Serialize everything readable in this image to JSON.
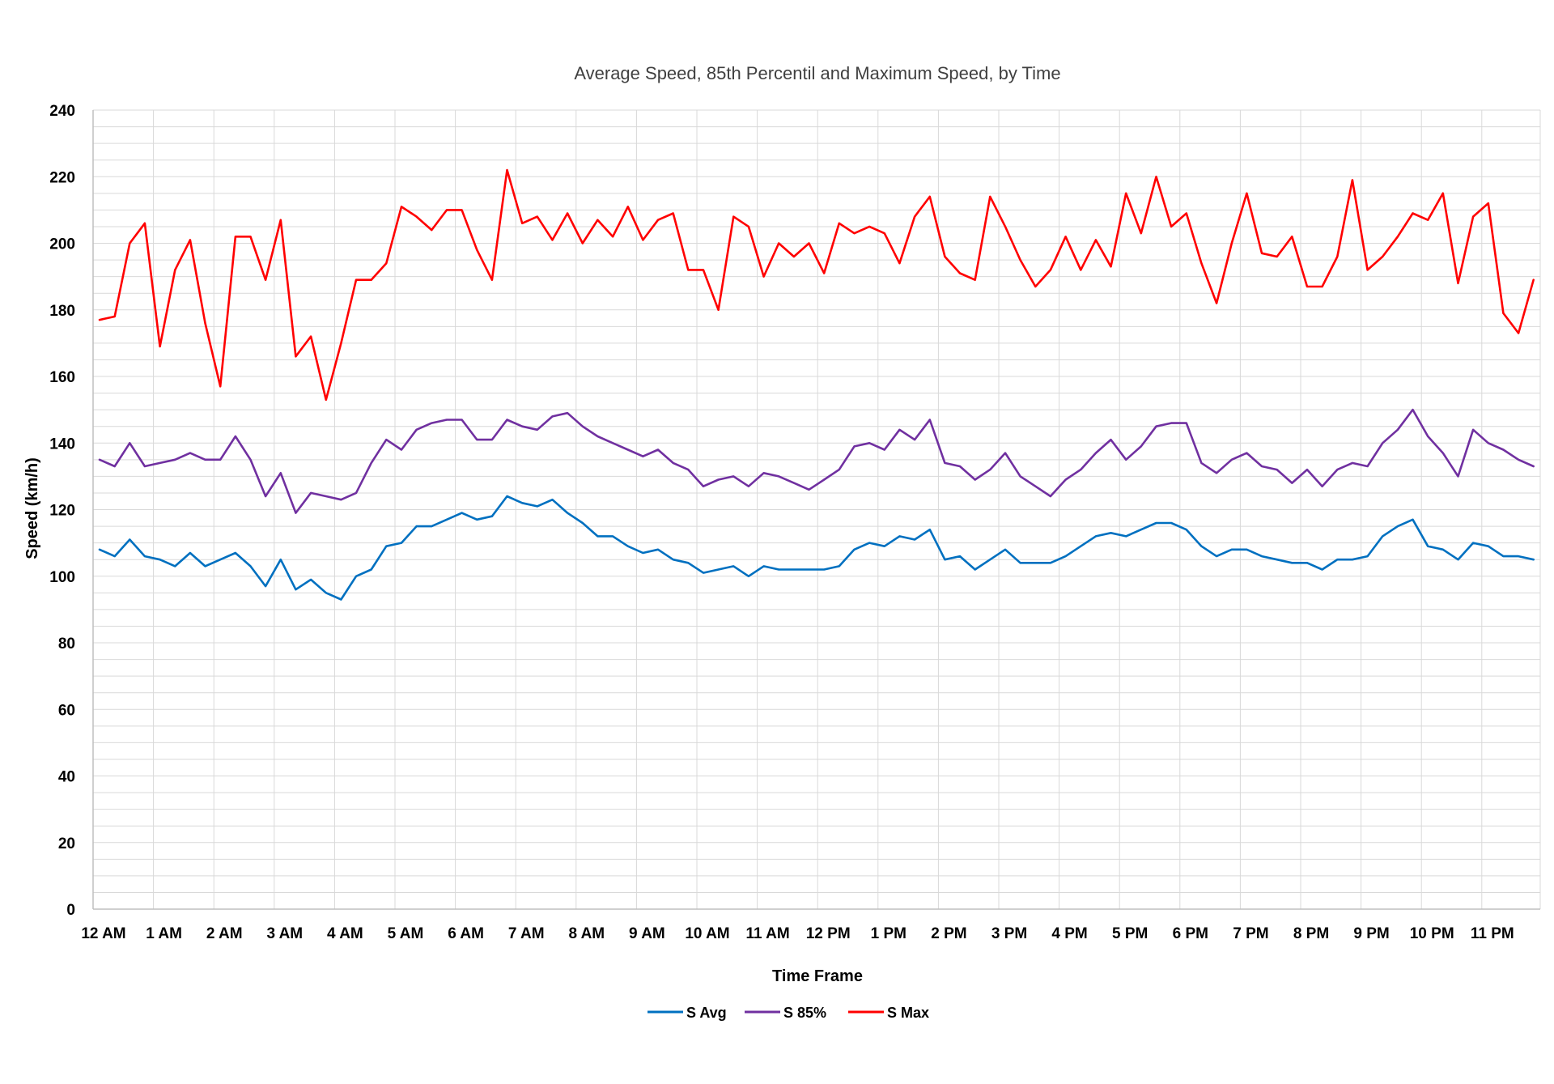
{
  "chart_data": {
    "type": "line",
    "title": "Average Speed, 85th Percentil and Maximum Speed, by Time",
    "xlabel": "Time Frame",
    "ylabel": "Speed (km/h)",
    "ylim": [
      0,
      240
    ],
    "yticks": [
      0,
      20,
      40,
      60,
      80,
      100,
      120,
      140,
      160,
      180,
      200,
      220,
      240
    ],
    "x_tick_labels": [
      "12 AM",
      "1 AM",
      "2 AM",
      "3 AM",
      "4 AM",
      "5 AM",
      "6 AM",
      "7 AM",
      "8 AM",
      "9 AM",
      "10 AM",
      "11 AM",
      "12 PM",
      "1 PM",
      "2 PM",
      "3 PM",
      "4 PM",
      "5 PM",
      "6 PM",
      "7 PM",
      "8 PM",
      "9 PM",
      "10 PM",
      "11 PM"
    ],
    "x_interval": "15 min",
    "grid": true,
    "legend_position": "bottom",
    "series": [
      {
        "name": "S Avg",
        "color": "#0070C0",
        "values": [
          108,
          106,
          111,
          106,
          105,
          103,
          107,
          103,
          105,
          107,
          103,
          97,
          105,
          96,
          99,
          95,
          93,
          100,
          102,
          109,
          110,
          115,
          115,
          117,
          119,
          117,
          118,
          124,
          122,
          121,
          123,
          119,
          116,
          112,
          112,
          109,
          107,
          108,
          105,
          104,
          101,
          102,
          103,
          100,
          103,
          102,
          102,
          102,
          102,
          103,
          108,
          110,
          109,
          112,
          111,
          114,
          105,
          106,
          102,
          105,
          108,
          104,
          104,
          104,
          106,
          109,
          112,
          113,
          112,
          114,
          116,
          116,
          114,
          109,
          106,
          108,
          108,
          106,
          105,
          104,
          104,
          102,
          105,
          105,
          106,
          112,
          115,
          117,
          109,
          108,
          105,
          110,
          109,
          106,
          106,
          105
        ]
      },
      {
        "name": "S 85%",
        "color": "#7030A0",
        "values": [
          135,
          133,
          140,
          133,
          134,
          135,
          137,
          135,
          135,
          142,
          135,
          124,
          131,
          119,
          125,
          124,
          123,
          125,
          134,
          141,
          138,
          144,
          146,
          147,
          147,
          141,
          141,
          147,
          145,
          144,
          148,
          149,
          145,
          142,
          140,
          138,
          136,
          138,
          134,
          132,
          127,
          129,
          130,
          127,
          131,
          130,
          128,
          126,
          129,
          132,
          139,
          140,
          138,
          144,
          141,
          147,
          134,
          133,
          129,
          132,
          137,
          130,
          127,
          124,
          129,
          132,
          137,
          141,
          135,
          139,
          145,
          146,
          146,
          134,
          131,
          135,
          137,
          133,
          132,
          128,
          132,
          127,
          132,
          134,
          133,
          140,
          144,
          150,
          142,
          137,
          130,
          144,
          140,
          138,
          135,
          133
        ]
      },
      {
        "name": "S Max",
        "color": "#FF0000",
        "values": [
          177,
          178,
          200,
          206,
          169,
          192,
          201,
          176,
          157,
          202,
          202,
          189,
          207,
          166,
          172,
          153,
          170,
          189,
          189,
          194,
          211,
          208,
          204,
          210,
          210,
          198,
          189,
          222,
          206,
          208,
          201,
          209,
          200,
          207,
          202,
          211,
          201,
          207,
          209,
          192,
          192,
          180,
          208,
          205,
          190,
          200,
          196,
          200,
          191,
          206,
          203,
          205,
          203,
          194,
          208,
          214,
          196,
          191,
          189,
          214,
          205,
          195,
          187,
          192,
          202,
          192,
          201,
          193,
          215,
          203,
          220,
          205,
          209,
          194,
          182,
          200,
          215,
          197,
          196,
          202,
          187,
          187,
          196,
          219,
          192,
          196,
          202,
          209,
          207,
          215,
          188,
          208,
          212,
          179,
          173,
          189
        ]
      }
    ]
  }
}
